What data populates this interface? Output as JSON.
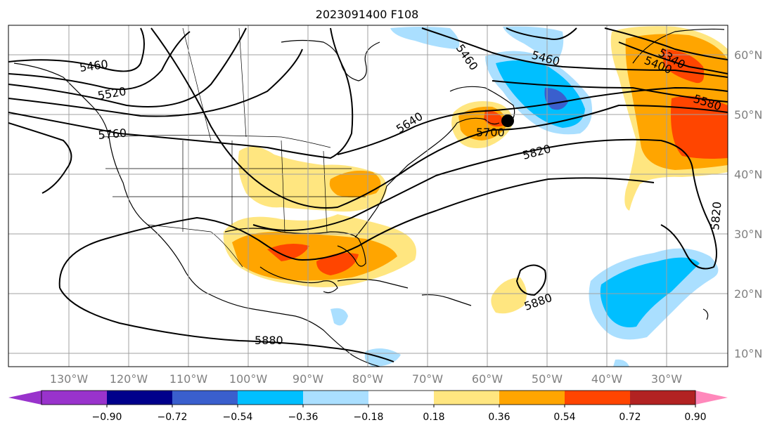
{
  "title": "2023091400 F108",
  "map": {
    "lon_ticks": [
      "130°W",
      "120°W",
      "110°W",
      "100°W",
      "90°W",
      "80°W",
      "70°W",
      "60°W",
      "50°W",
      "40°W",
      "30°W"
    ],
    "lat_ticks": [
      "60°N",
      "50°N",
      "40°N",
      "30°N",
      "20°N",
      "10°N"
    ],
    "contour_labels": [
      "5460",
      "5520",
      "5760",
      "5640",
      "5700",
      "5460",
      "5340",
      "5400",
      "5580",
      "5820",
      "5820",
      "5880",
      "5880",
      "5460"
    ]
  },
  "colorbar": {
    "ticks": [
      "−0.90",
      "−0.72",
      "−0.54",
      "−0.36",
      "−0.18",
      "0.18",
      "0.36",
      "0.54",
      "0.72",
      "0.90"
    ],
    "colors": {
      "under": "#9933cc",
      "bins": [
        "#9933cc",
        "#00008b",
        "#3a5fcd",
        "#00bfff",
        "#aadfff",
        "#ffffff",
        "#ffe680",
        "#ffa500",
        "#ff4500",
        "#b22222"
      ],
      "over": "#ff88bb"
    }
  }
}
